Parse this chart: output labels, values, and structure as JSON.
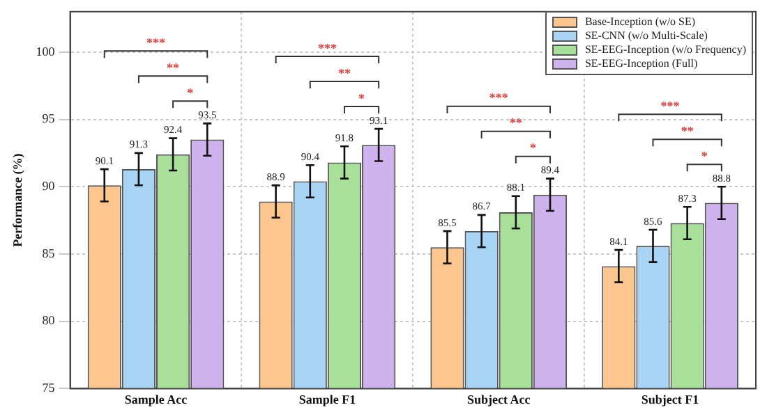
{
  "chart_data": {
    "type": "bar",
    "ylabel": "Performance (%)",
    "categories": [
      "Sample Acc",
      "Sample F1",
      "Subject Acc",
      "Subject F1"
    ],
    "series": [
      {
        "name": "Base-Inception (w/o SE)",
        "color": "#fdc68e",
        "values": [
          90.1,
          88.9,
          85.5,
          84.1
        ],
        "errors": [
          1.2,
          1.2,
          1.2,
          1.2
        ]
      },
      {
        "name": "SE-CNN (w/o Multi-Scale)",
        "color": "#a8d4f5",
        "values": [
          91.3,
          90.4,
          86.7,
          85.6
        ],
        "errors": [
          1.2,
          1.2,
          1.2,
          1.2
        ]
      },
      {
        "name": "SE-EEG-Inception (w/o Frequency)",
        "color": "#a8e09a",
        "values": [
          92.4,
          91.8,
          88.1,
          87.3
        ],
        "errors": [
          1.2,
          1.2,
          1.2,
          1.2
        ]
      },
      {
        "name": "SE-EEG-Inception (Full)",
        "color": "#cdb2ee",
        "values": [
          93.5,
          93.1,
          89.4,
          88.8
        ],
        "errors": [
          1.2,
          1.2,
          1.2,
          1.2
        ]
      }
    ],
    "ylim": [
      75,
      103
    ],
    "yticks": [
      75,
      80,
      85,
      90,
      95,
      100
    ],
    "grid": true,
    "legend": "top right",
    "data_labels": true,
    "annotations": [
      "***",
      "**",
      "*",
      "***",
      "**",
      "*",
      "***",
      "**",
      "*",
      "***",
      "**",
      "*"
    ]
  }
}
